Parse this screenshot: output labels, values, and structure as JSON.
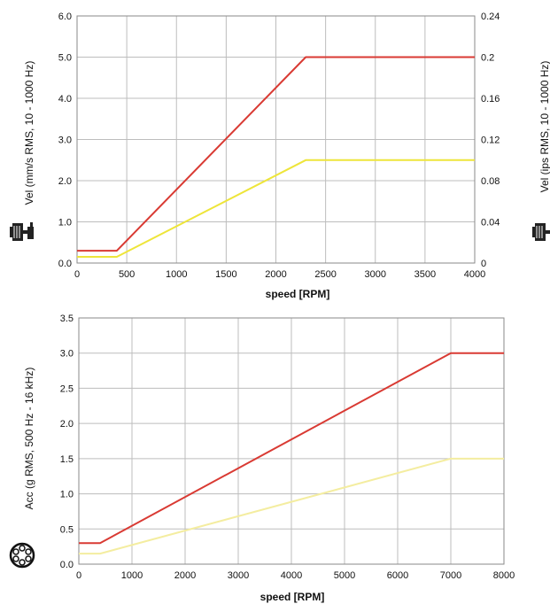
{
  "chart_data": [
    {
      "type": "line",
      "xlabel": "speed [RPM]",
      "ylabel": "Vel (mm/s RMS, 10 - 1000 Hz)",
      "ylabel_right": "Vel (ips RMS, 10 - 1000 Hz)",
      "xlim": [
        0,
        4000
      ],
      "ylim": [
        0,
        6
      ],
      "ylim_right": [
        0,
        0.24
      ],
      "x_ticks": [
        "0",
        "500",
        "1000",
        "1500",
        "2000",
        "2500",
        "3000",
        "3500",
        "4000"
      ],
      "y_ticks": [
        "0.0",
        "1.0",
        "2.0",
        "3.0",
        "4.0",
        "5.0",
        "6.0"
      ],
      "y_ticks_right": [
        "0",
        "0.04",
        "0.08",
        "0.12",
        "0.16",
        "0.2",
        "0.24"
      ],
      "grid": true,
      "icon": "motor-pump-icon",
      "series": [
        {
          "color": "#d93a33",
          "x": [
            0,
            400,
            2300,
            4000
          ],
          "y": [
            0.3,
            0.3,
            5.0,
            5.0
          ]
        },
        {
          "color": "#eee53a",
          "x": [
            0,
            400,
            2300,
            4000
          ],
          "y": [
            0.15,
            0.15,
            2.5,
            2.5
          ]
        }
      ]
    },
    {
      "type": "line",
      "xlabel": "speed [RPM]",
      "ylabel": "Acc (g RMS, 500 Hz - 16 kHz)",
      "xlim": [
        0,
        8000
      ],
      "ylim": [
        0,
        3.5
      ],
      "x_ticks": [
        "0",
        "1000",
        "2000",
        "3000",
        "4000",
        "5000",
        "6000",
        "7000",
        "8000"
      ],
      "y_ticks": [
        "0.0",
        "0.5",
        "1.0",
        "1.5",
        "2.0",
        "2.5",
        "3.0",
        "3.5"
      ],
      "grid": true,
      "icon": "bearing-icon",
      "series": [
        {
          "color": "#d93a33",
          "x": [
            0,
            400,
            7000,
            8000
          ],
          "y": [
            0.3,
            0.3,
            3.0,
            3.0
          ]
        },
        {
          "color": "#f4eda0",
          "x": [
            0,
            400,
            7000,
            8000
          ],
          "y": [
            0.15,
            0.15,
            1.5,
            1.5
          ]
        }
      ]
    }
  ]
}
